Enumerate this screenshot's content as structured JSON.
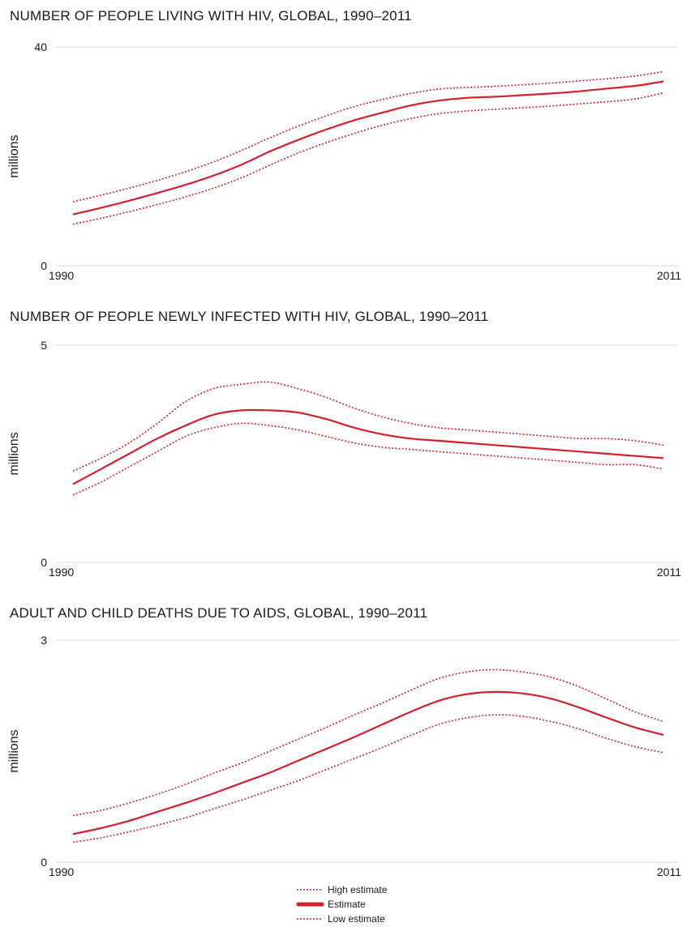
{
  "colors": {
    "series": "#d3202b",
    "grid": "#d9d9d9",
    "text": "#1a1a1a"
  },
  "legend": [
    {
      "name": "High estimate",
      "style": "dotted"
    },
    {
      "name": "Estimate",
      "style": "solid-thick"
    },
    {
      "name": "Low estimate",
      "style": "dotted"
    }
  ],
  "chart_data": [
    {
      "type": "line",
      "title": "NUMBER OF PEOPLE LIVING WITH HIV, GLOBAL, 1990–2011",
      "ylabel": "millions",
      "xlabel": "",
      "xlim": [
        1990,
        2011
      ],
      "ylim": [
        0,
        40
      ],
      "x_tick_labels": [
        "1990",
        "2011"
      ],
      "y_tick_labels": [
        "0",
        "40"
      ],
      "x": [
        1990,
        1991,
        1992,
        1993,
        1994,
        1995,
        1996,
        1997,
        1998,
        1999,
        2000,
        2001,
        2002,
        2003,
        2004,
        2005,
        2006,
        2007,
        2008,
        2009,
        2010,
        2011
      ],
      "series": [
        {
          "name": "High estimate",
          "style": "dotted",
          "values": [
            11.7,
            12.9,
            14.2,
            15.6,
            17.2,
            19.0,
            21.1,
            23.4,
            25.5,
            27.4,
            29.1,
            30.4,
            31.5,
            32.3,
            32.6,
            32.8,
            33.1,
            33.4,
            33.8,
            34.2,
            34.7,
            35.5
          ]
        },
        {
          "name": "Estimate",
          "style": "solid",
          "values": [
            9.4,
            10.6,
            11.9,
            13.3,
            14.8,
            16.5,
            18.5,
            20.9,
            23.0,
            24.9,
            26.6,
            28.0,
            29.3,
            30.2,
            30.7,
            30.9,
            31.2,
            31.5,
            31.9,
            32.4,
            32.9,
            33.7
          ]
        },
        {
          "name": "Low estimate",
          "style": "dotted",
          "values": [
            7.6,
            8.7,
            9.9,
            11.2,
            12.6,
            14.2,
            16.1,
            18.4,
            20.6,
            22.5,
            24.2,
            25.7,
            26.9,
            27.8,
            28.3,
            28.6,
            28.9,
            29.2,
            29.6,
            30.0,
            30.5,
            31.6
          ]
        }
      ]
    },
    {
      "type": "line",
      "title": "NUMBER OF PEOPLE NEWLY INFECTED WITH HIV, GLOBAL, 1990–2011",
      "ylabel": "millions",
      "xlabel": "",
      "xlim": [
        1990,
        2011
      ],
      "ylim": [
        0,
        5
      ],
      "x_tick_labels": [
        "1990",
        "2011"
      ],
      "y_tick_labels": [
        "0",
        "5"
      ],
      "x": [
        1990,
        1991,
        1992,
        1993,
        1994,
        1995,
        1996,
        1997,
        1998,
        1999,
        2000,
        2001,
        2002,
        2003,
        2004,
        2005,
        2006,
        2007,
        2008,
        2009,
        2010,
        2011
      ],
      "series": [
        {
          "name": "High estimate",
          "style": "dotted",
          "values": [
            2.1,
            2.4,
            2.75,
            3.2,
            3.7,
            4.0,
            4.1,
            4.15,
            4.0,
            3.8,
            3.55,
            3.35,
            3.2,
            3.1,
            3.05,
            3.0,
            2.95,
            2.9,
            2.85,
            2.85,
            2.8,
            2.7
          ]
        },
        {
          "name": "Estimate",
          "style": "solid",
          "values": [
            1.8,
            2.15,
            2.5,
            2.85,
            3.15,
            3.4,
            3.5,
            3.5,
            3.45,
            3.3,
            3.1,
            2.95,
            2.85,
            2.8,
            2.75,
            2.7,
            2.65,
            2.6,
            2.55,
            2.5,
            2.45,
            2.4
          ]
        },
        {
          "name": "Low estimate",
          "style": "dotted",
          "values": [
            1.55,
            1.85,
            2.2,
            2.55,
            2.9,
            3.1,
            3.2,
            3.15,
            3.05,
            2.9,
            2.75,
            2.65,
            2.6,
            2.55,
            2.5,
            2.45,
            2.4,
            2.35,
            2.3,
            2.25,
            2.25,
            2.15
          ]
        }
      ]
    },
    {
      "type": "line",
      "title": "ADULT AND CHILD DEATHS DUE TO AIDS, GLOBAL, 1990–2011",
      "ylabel": "millions",
      "xlabel": "",
      "xlim": [
        1990,
        2011
      ],
      "ylim": [
        0,
        3
      ],
      "x_tick_labels": [
        "1990",
        "2011"
      ],
      "y_tick_labels": [
        "0",
        "3"
      ],
      "x": [
        1990,
        1991,
        1992,
        1993,
        1994,
        1995,
        1996,
        1997,
        1998,
        1999,
        2000,
        2001,
        2002,
        2003,
        2004,
        2005,
        2006,
        2007,
        2008,
        2009,
        2010,
        2011
      ],
      "series": [
        {
          "name": "High estimate",
          "style": "dotted",
          "values": [
            0.63,
            0.7,
            0.8,
            0.92,
            1.05,
            1.2,
            1.34,
            1.5,
            1.66,
            1.82,
            1.99,
            2.15,
            2.32,
            2.48,
            2.57,
            2.6,
            2.57,
            2.5,
            2.37,
            2.2,
            2.03,
            1.9
          ]
        },
        {
          "name": "Estimate",
          "style": "solid",
          "values": [
            0.38,
            0.46,
            0.56,
            0.68,
            0.8,
            0.93,
            1.07,
            1.21,
            1.37,
            1.53,
            1.69,
            1.86,
            2.03,
            2.18,
            2.27,
            2.3,
            2.28,
            2.21,
            2.09,
            1.95,
            1.82,
            1.72
          ]
        },
        {
          "name": "Low estimate",
          "style": "dotted",
          "values": [
            0.27,
            0.33,
            0.41,
            0.5,
            0.6,
            0.72,
            0.84,
            0.97,
            1.1,
            1.25,
            1.4,
            1.55,
            1.71,
            1.86,
            1.95,
            1.99,
            1.97,
            1.9,
            1.8,
            1.67,
            1.56,
            1.48
          ]
        }
      ]
    }
  ]
}
